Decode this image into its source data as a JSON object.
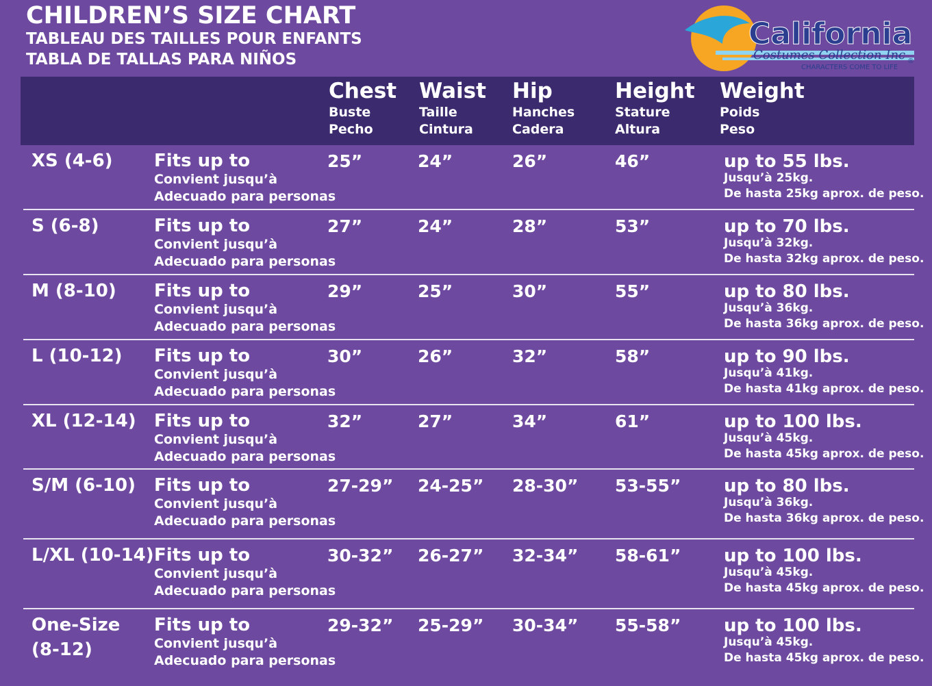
{
  "header": {
    "title": "CHILDREN’S SIZE CHART",
    "subtitle_fr": "TABLEAU DES TAILLES POUR ENFANTS",
    "subtitle_es": "TABLA DE TALLAS PARA NIÑOS"
  },
  "logo": {
    "name": "California",
    "sub": "Costumes Collection Inc",
    "tagline": "CHARACTERS COME TO LIFE",
    "mark": "®"
  },
  "table": {
    "columns": [
      [
        "Chest",
        "Buste",
        "Pecho"
      ],
      [
        "Waist",
        "Taille",
        "Cintura"
      ],
      [
        "Hip",
        "Hanches",
        "Cadera"
      ],
      [
        "Height",
        "Stature",
        "Altura"
      ],
      [
        "Weight",
        "Poids",
        "Peso"
      ]
    ],
    "rows": [
      {
        "size": [
          "XS (4-6)"
        ],
        "fits": [
          "Fits up to",
          "Convient jusqu’à",
          "Adecuado para personas"
        ],
        "measures": [
          "25”",
          "24”",
          "26”",
          "46”"
        ],
        "weight": [
          "up to 55 lbs.",
          "Jusqu’à 25kg.",
          "De hasta 25kg aprox. de peso."
        ]
      },
      {
        "size": [
          "S (6-8)"
        ],
        "fits": [
          "Fits up to",
          "Convient jusqu’à",
          "Adecuado para personas"
        ],
        "measures": [
          "27”",
          "24”",
          "28”",
          "53”"
        ],
        "weight": [
          "up to 70 lbs.",
          "Jusqu’à 32kg.",
          "De hasta 32kg aprox. de peso."
        ]
      },
      {
        "size": [
          "M (8-10)"
        ],
        "fits": [
          "Fits up to",
          "Convient jusqu’à",
          "Adecuado para personas"
        ],
        "measures": [
          "29”",
          "25”",
          "30”",
          "55”"
        ],
        "weight": [
          "up to 80 lbs.",
          "Jusqu’à 36kg.",
          "De hasta 36kg aprox. de peso."
        ]
      },
      {
        "size": [
          "L (10-12)"
        ],
        "fits": [
          "Fits up to",
          "Convient jusqu’à",
          "Adecuado para personas"
        ],
        "measures": [
          "30”",
          "26”",
          "32”",
          "58”"
        ],
        "weight": [
          "up to 90 lbs.",
          "Jusqu’à 41kg.",
          "De hasta 41kg aprox. de peso."
        ]
      },
      {
        "size": [
          "XL (12-14)"
        ],
        "fits": [
          "Fits up to",
          "Convient jusqu’à",
          "Adecuado para personas"
        ],
        "measures": [
          "32”",
          "27”",
          "34”",
          "61”"
        ],
        "weight": [
          "up to 100 lbs.",
          "Jusqu’à 45kg.",
          "De hasta 45kg aprox. de peso."
        ]
      },
      {
        "size": [
          "S/M (6-10)"
        ],
        "fits": [
          "Fits up to",
          "Convient jusqu’à",
          "Adecuado para personas"
        ],
        "measures": [
          "27-29”",
          "24-25”",
          "28-30”",
          "53-55”"
        ],
        "weight": [
          "up to 80 lbs.",
          "Jusqu’à 36kg.",
          "De hasta 36kg aprox. de peso."
        ]
      },
      {
        "size": [
          "L/XL (10-14)"
        ],
        "fits": [
          "Fits up to",
          "Convient jusqu’à",
          "Adecuado para personas"
        ],
        "measures": [
          "30-32”",
          "26-27”",
          "32-34”",
          "58-61”"
        ],
        "weight": [
          "up to 100 lbs.",
          "Jusqu’à 45kg.",
          "De hasta 45kg aprox. de peso."
        ]
      },
      {
        "size": [
          "One-Size",
          "(8-12)"
        ],
        "fits": [
          "Fits up to",
          "Convient jusqu’à",
          "Adecuado para personas"
        ],
        "measures": [
          "29-32”",
          "25-29”",
          "30-34”",
          "55-58”"
        ],
        "weight": [
          "up to 100 lbs.",
          "Jusqu’à 45kg.",
          "De hasta 45kg aprox. de peso."
        ]
      }
    ]
  }
}
